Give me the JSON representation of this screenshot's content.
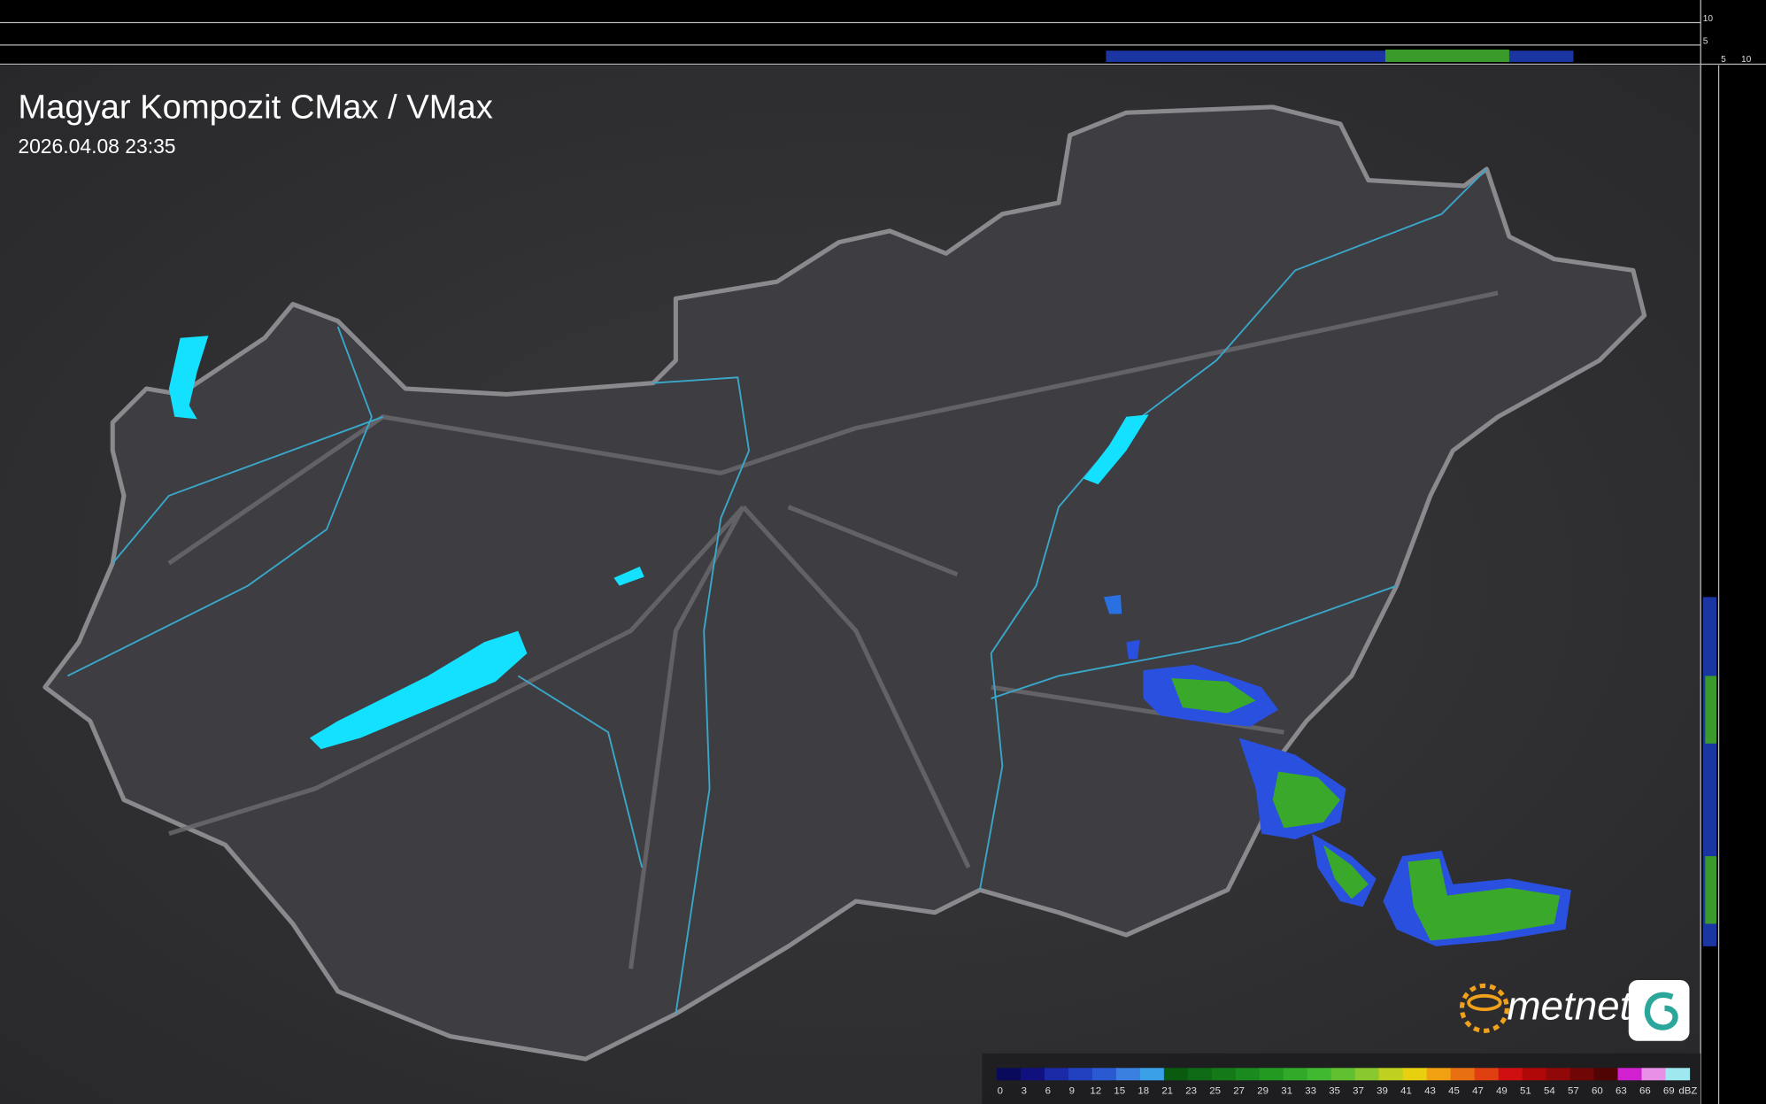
{
  "header": {
    "title": "Magyar Kompozit CMax / VMax",
    "timestamp": "2026.04.08 23:35"
  },
  "side_axis": {
    "top_labels": [
      "10",
      "5"
    ],
    "right_labels": [
      "5",
      "10"
    ]
  },
  "logo": {
    "text": "metnet"
  },
  "legend": {
    "unit": "dBZ",
    "entries": [
      {
        "label": "0",
        "color": "#0a0a5a"
      },
      {
        "label": "3",
        "color": "#10107e"
      },
      {
        "label": "6",
        "color": "#1a2aa6"
      },
      {
        "label": "9",
        "color": "#2040c0"
      },
      {
        "label": "12",
        "color": "#2a5ad2"
      },
      {
        "label": "15",
        "color": "#3a80e0"
      },
      {
        "label": "18",
        "color": "#3aa0e8"
      },
      {
        "label": "21",
        "color": "#0a5a10"
      },
      {
        "label": "23",
        "color": "#0e6a14"
      },
      {
        "label": "25",
        "color": "#147a18"
      },
      {
        "label": "27",
        "color": "#1a8a1e"
      },
      {
        "label": "29",
        "color": "#229a22"
      },
      {
        "label": "31",
        "color": "#30aa28"
      },
      {
        "label": "33",
        "color": "#40b830"
      },
      {
        "label": "35",
        "color": "#60c030"
      },
      {
        "label": "37",
        "color": "#8ac830"
      },
      {
        "label": "39",
        "color": "#c0d020"
      },
      {
        "label": "41",
        "color": "#e8d010"
      },
      {
        "label": "43",
        "color": "#f0a010"
      },
      {
        "label": "45",
        "color": "#e87010"
      },
      {
        "label": "47",
        "color": "#e04010"
      },
      {
        "label": "49",
        "color": "#d01010"
      },
      {
        "label": "51",
        "color": "#b00808"
      },
      {
        "label": "54",
        "color": "#900808"
      },
      {
        "label": "57",
        "color": "#700606"
      },
      {
        "label": "60",
        "color": "#500404"
      },
      {
        "label": "63",
        "color": "#d020d0"
      },
      {
        "label": "66",
        "color": "#e890e8"
      },
      {
        "label": "69",
        "color": "#a0e8f0"
      }
    ]
  }
}
